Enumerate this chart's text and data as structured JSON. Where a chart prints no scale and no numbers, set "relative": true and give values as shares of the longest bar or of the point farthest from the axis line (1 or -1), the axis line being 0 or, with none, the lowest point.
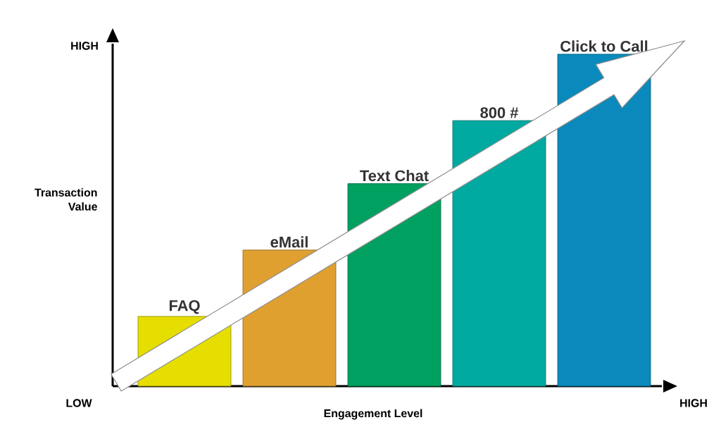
{
  "chart_data": {
    "type": "bar",
    "relative": true,
    "categories": [
      "FAQ",
      "eMail",
      "Text Chat",
      "800 #",
      "Click to Call"
    ],
    "values": [
      0.21,
      0.41,
      0.61,
      0.8,
      1
    ],
    "colors": [
      "#e5de00",
      "#e0a030",
      "#00a060",
      "#00aaa0",
      "#0a8abc"
    ],
    "xlabel": "Engagement Level",
    "ylabel": "Transaction Value",
    "annotations": [
      "HIGH",
      "LOW",
      "HIGH"
    ]
  }
}
